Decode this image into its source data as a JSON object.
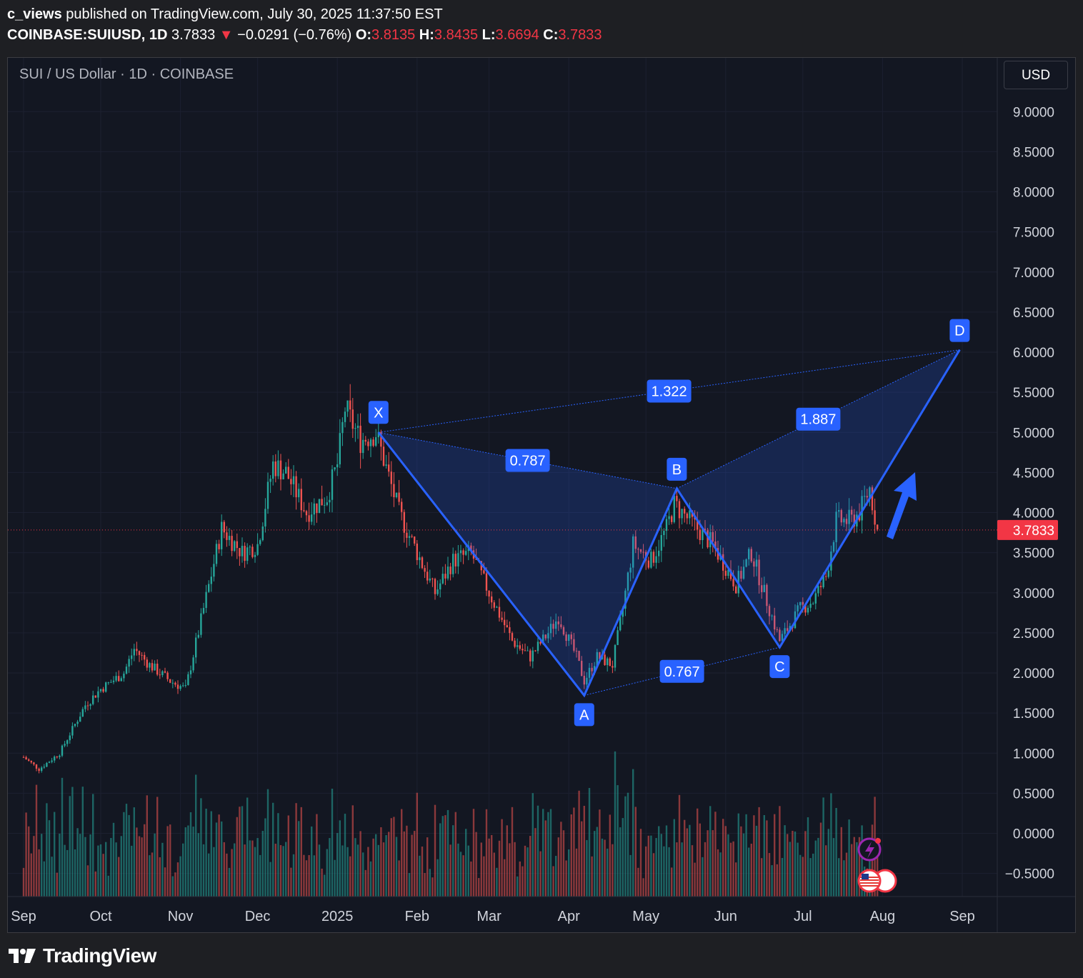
{
  "header": {
    "author": "c_views",
    "published_text": "published on TradingView.com, July 30, 2025 11:37:50 EST",
    "symbol": "COINBASE:SUIUSD, 1D",
    "last": "3.7833",
    "change_arrow": "▼",
    "change": "−0.0291 (−0.76%)",
    "o_label": "O:",
    "o_value": "3.8135",
    "h_label": "H:",
    "h_value": "3.8435",
    "l_label": "L:",
    "l_value": "3.6694",
    "c_label": "C:",
    "c_value": "3.7833"
  },
  "chart_title": "SUI / US Dollar · 1D · COINBASE",
  "currency_button": "USD",
  "footer": {
    "brand": "TradingView",
    "logo_icon": "tradingview-logo-icon"
  },
  "colors": {
    "background": "#131722",
    "up": "#26a69a",
    "down": "#ef5350",
    "pattern": "#2962ff",
    "price_tag": "#f23645"
  },
  "chart_data": {
    "type": "candlestick",
    "title": "SUI / US Dollar · 1D · COINBASE",
    "xlabel": "",
    "ylabel": "",
    "ylim": [
      -0.5,
      9.0
    ],
    "y_ticks": [
      "9.0000",
      "8.5000",
      "8.0000",
      "7.5000",
      "7.0000",
      "6.5000",
      "6.0000",
      "5.5000",
      "5.0000",
      "4.5000",
      "4.0000",
      "3.5000",
      "3.0000",
      "2.5000",
      "2.0000",
      "1.5000",
      "1.0000",
      "0.5000",
      "0.0000",
      "−0.5000"
    ],
    "x_ticks": [
      "Sep",
      "Oct",
      "Nov",
      "Dec",
      "2025",
      "Feb",
      "Mar",
      "Apr",
      "May",
      "Jun",
      "Jul",
      "Aug",
      "Sep"
    ],
    "last_price": "3.7833",
    "price_path": [
      [
        "2024-09-01",
        0.95
      ],
      [
        "2024-09-07",
        0.8
      ],
      [
        "2024-09-15",
        1.0
      ],
      [
        "2024-09-25",
        1.6
      ],
      [
        "2024-10-01",
        1.8
      ],
      [
        "2024-10-10",
        2.0
      ],
      [
        "2024-10-14",
        2.3
      ],
      [
        "2024-10-20",
        2.1
      ],
      [
        "2024-10-28",
        1.9
      ],
      [
        "2024-11-03",
        1.8
      ],
      [
        "2024-11-10",
        2.8
      ],
      [
        "2024-11-17",
        3.8
      ],
      [
        "2024-11-25",
        3.5
      ],
      [
        "2024-12-01",
        3.6
      ],
      [
        "2024-12-07",
        4.6
      ],
      [
        "2024-12-12",
        4.5
      ],
      [
        "2024-12-20",
        4.0
      ],
      [
        "2024-12-28",
        4.2
      ],
      [
        "2025-01-01",
        4.6
      ],
      [
        "2025-01-04",
        5.3
      ],
      [
        "2025-01-10",
        4.9
      ],
      [
        "2025-01-16",
        5.0
      ],
      [
        "2025-01-25",
        4.0
      ],
      [
        "2025-02-01",
        3.5
      ],
      [
        "2025-02-08",
        3.0
      ],
      [
        "2025-02-15",
        3.4
      ],
      [
        "2025-02-22",
        3.5
      ],
      [
        "2025-03-01",
        3.0
      ],
      [
        "2025-03-10",
        2.4
      ],
      [
        "2025-03-17",
        2.2
      ],
      [
        "2025-03-24",
        2.5
      ],
      [
        "2025-03-28",
        2.7
      ],
      [
        "2025-04-04",
        2.2
      ],
      [
        "2025-04-07",
        1.9
      ],
      [
        "2025-04-12",
        2.2
      ],
      [
        "2025-04-18",
        2.1
      ],
      [
        "2025-04-22",
        2.8
      ],
      [
        "2025-04-26",
        3.6
      ],
      [
        "2025-05-03",
        3.4
      ],
      [
        "2025-05-09",
        3.8
      ],
      [
        "2025-05-12",
        4.1
      ],
      [
        "2025-05-18",
        3.9
      ],
      [
        "2025-05-27",
        3.6
      ],
      [
        "2025-06-05",
        3.1
      ],
      [
        "2025-06-11",
        3.5
      ],
      [
        "2025-06-17",
        2.9
      ],
      [
        "2025-06-22",
        2.4
      ],
      [
        "2025-06-30",
        2.8
      ],
      [
        "2025-07-05",
        2.9
      ],
      [
        "2025-07-10",
        3.2
      ],
      [
        "2025-07-14",
        3.9
      ],
      [
        "2025-07-20",
        3.9
      ],
      [
        "2025-07-23",
        4.0
      ],
      [
        "2025-07-27",
        4.3
      ],
      [
        "2025-07-30",
        3.78
      ]
    ],
    "harmonic_pattern": {
      "points": [
        {
          "label": "X",
          "date": "2025-01-17",
          "price": 5.0
        },
        {
          "label": "A",
          "date": "2025-04-07",
          "price": 1.72
        },
        {
          "label": "B",
          "date": "2025-05-13",
          "price": 4.3
        },
        {
          "label": "C",
          "date": "2025-06-22",
          "price": 2.32
        },
        {
          "label": "D",
          "date": "2025-08-31",
          "price": 6.03
        }
      ],
      "ratios": [
        {
          "label": "0.787",
          "from": "X",
          "to": "B"
        },
        {
          "label": "0.767",
          "from": "A",
          "to": "C"
        },
        {
          "label": "1.887",
          "from": "B",
          "to": "D"
        },
        {
          "label": "1.322",
          "from": "X",
          "to": "D"
        }
      ]
    }
  }
}
